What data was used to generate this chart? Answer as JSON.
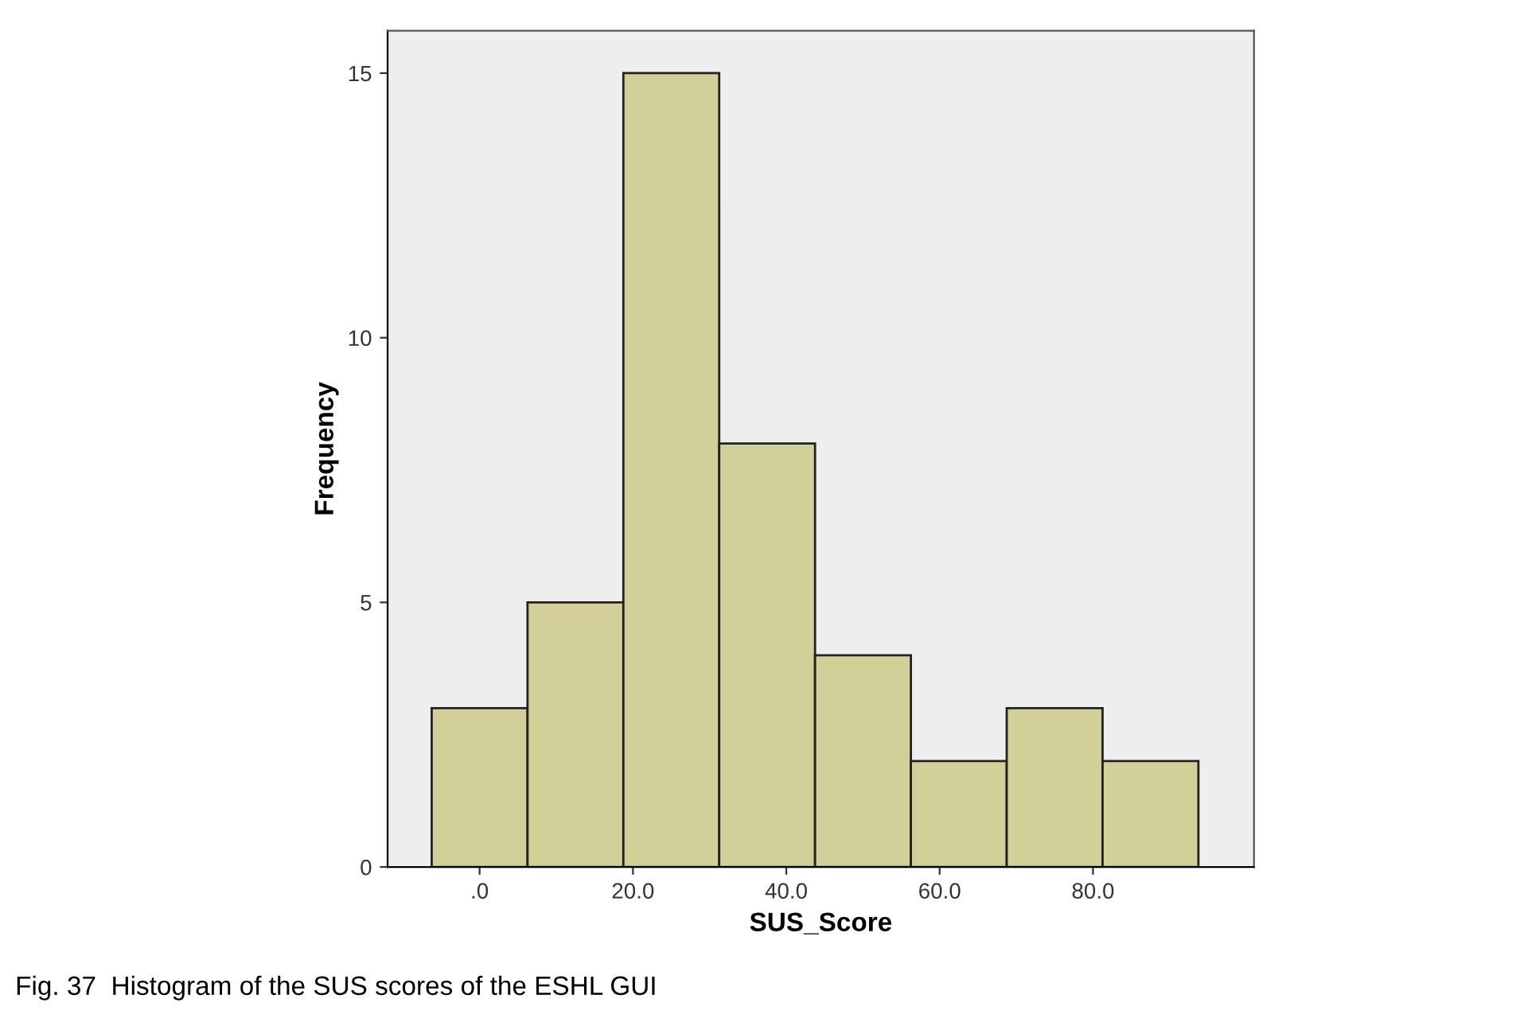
{
  "chart_data": {
    "type": "histogram",
    "xlabel": "SUS_Score",
    "ylabel": "Frequency",
    "bins": [
      -6.25,
      6.25,
      18.75,
      31.25,
      43.75,
      56.25,
      68.75,
      81.25,
      93.75
    ],
    "values": [
      3,
      5,
      15,
      8,
      4,
      2,
      3,
      2
    ],
    "color": "#d3cf98",
    "xlim": [
      -12,
      101
    ],
    "xticks": [
      {
        "value": 0,
        "label": ".0"
      },
      {
        "value": 20,
        "label": "20.0"
      },
      {
        "value": 40,
        "label": "40.0"
      },
      {
        "value": 60,
        "label": "60.0"
      },
      {
        "value": 80,
        "label": "80.0"
      }
    ],
    "ylim": [
      0,
      15.8
    ],
    "yticks": [
      0,
      5,
      10,
      15
    ],
    "grid": false,
    "annotations": [
      "Fig. 37  Histogram of the SUS scores of the ESHL GUI"
    ]
  }
}
